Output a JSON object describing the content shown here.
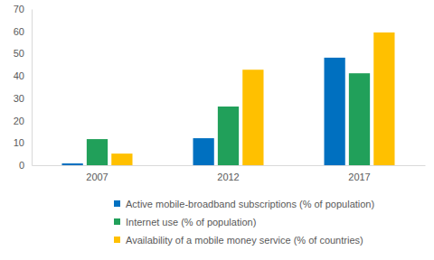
{
  "chart_data": {
    "type": "bar",
    "categories": [
      "2007",
      "2012",
      "2017"
    ],
    "series": [
      {
        "name": "Active mobile-broadband subscriptions (% of population)",
        "color": "#0070c0",
        "values": [
          0.8,
          12.1,
          48.2
        ]
      },
      {
        "name": "Internet use (% of population)",
        "color": "#21a05a",
        "values": [
          11.7,
          26.3,
          41.2
        ]
      },
      {
        "name": "Availability of a mobile money service (% of countries)",
        "color": "#ffc000",
        "values": [
          5.2,
          42.8,
          59.5
        ]
      }
    ],
    "ylim": [
      0,
      70
    ],
    "yticks": [
      0,
      10,
      20,
      30,
      40,
      50,
      60,
      70
    ],
    "grid": false,
    "legend": "bottom"
  }
}
